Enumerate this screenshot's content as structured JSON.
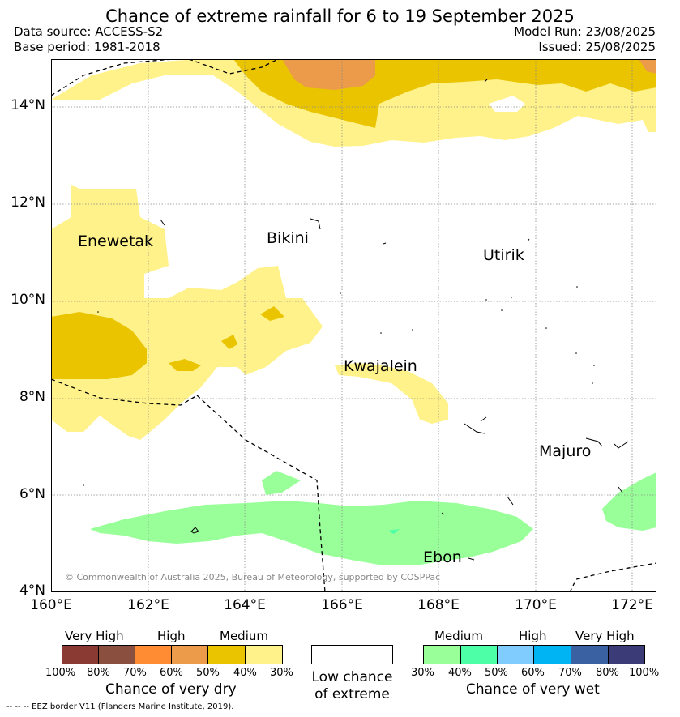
{
  "title": "Chance of extreme rainfall for 6 to 19 September 2025",
  "data_source": "Data source: ACCESS-S2",
  "base_period": "Base period: 1981-2018",
  "model_run": "Model Run: 23/08/2025",
  "issued": "Issued: 25/08/2025",
  "copyright": "© Commonwealth of Australia 2025, Bureau of Meteorology, supported by COSPPac",
  "eez_note": "-- -- -- EEZ border V11 (Flanders Marine Institute, 2019).",
  "lat_labels": [
    "14°N",
    "12°N",
    "10°N",
    "8°N",
    "6°N",
    "4°N"
  ],
  "lon_labels": [
    "160°E",
    "162°E",
    "164°E",
    "166°E",
    "168°E",
    "170°E",
    "172°E"
  ],
  "islands": {
    "enewetak": "Enewetak",
    "bikini": "Bikini",
    "utirik": "Utirik",
    "kwajalein": "Kwajalein",
    "majuro": "Majuro",
    "ebon": "Ebon"
  },
  "legend_dry": {
    "caption": "Chance of very dry",
    "heads": [
      "Very High",
      "High",
      "Medium"
    ],
    "colors": [
      "#8b3a33",
      "#8b4f3f",
      "#ff8c33",
      "#eb9b4a",
      "#ebc400",
      "#fff28a"
    ],
    "ticks": [
      "100%",
      "80%",
      "70%",
      "60%",
      "50%",
      "40%",
      "30%"
    ]
  },
  "legend_low": {
    "line1": "Low chance",
    "line2": "of extreme"
  },
  "legend_wet": {
    "caption": "Chance of very wet",
    "heads": [
      "Medium",
      "High",
      "Very High"
    ],
    "colors": [
      "#99ff99",
      "#4dffa6",
      "#80ccff",
      "#00b3f2",
      "#3a62a3",
      "#3b3b78"
    ],
    "ticks": [
      "30%",
      "40%",
      "50%",
      "60%",
      "70%",
      "80%",
      "100%"
    ]
  }
}
